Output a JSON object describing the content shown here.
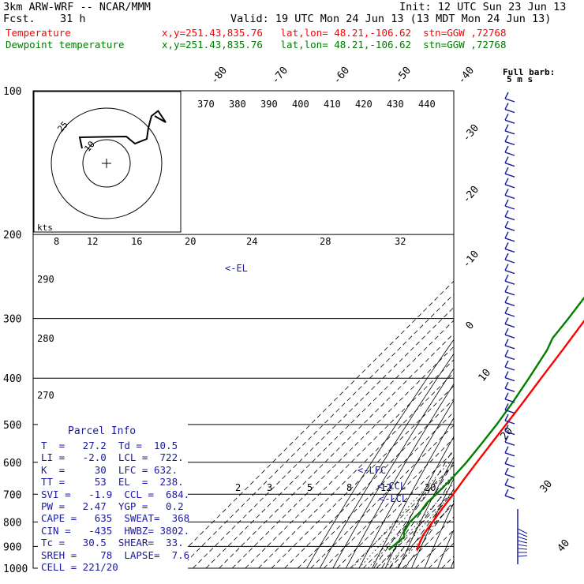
{
  "header": {
    "model": "3km ARW-WRF -- NCAR/MMM",
    "init": "Init: 12 UTC Sun 23 Jun 13",
    "fcst_label": "Fcst.",
    "fcst_value": "31 h",
    "valid": "Valid: 19 UTC Mon 24 Jun 13 (13 MDT Mon 24 Jun 13)",
    "temp_label": "Temperature",
    "dew_label": "Dewpoint temperature",
    "temp_loc": "x,y=251.43,835.76   lat,lon= 48.21,-106.62  stn=GGW ,72768",
    "dew_loc": "x,y=251.43,835.76   lat,lon= 48.21,-106.62  stn=GGW ,72768"
  },
  "colors": {
    "temperature": "#ff0000",
    "dewpoint": "#008000",
    "text_blue": "#1a1aa0"
  },
  "chart_data": {
    "type": "line",
    "skewt": true,
    "pressure_labels": [
      "100",
      "200",
      "300",
      "400",
      "500",
      "600",
      "700",
      "800",
      "900",
      "1000"
    ],
    "pressure_levels": [
      100,
      200,
      300,
      400,
      500,
      600,
      700,
      800,
      900,
      1000
    ],
    "top_temp_labels": [
      "-80",
      "-70",
      "-60",
      "-50",
      "-40"
    ],
    "right_temp_labels": [
      "-30",
      "-20",
      "-10",
      "0",
      "10",
      "20",
      "30",
      "40"
    ],
    "theta_labels": [
      "370",
      "380",
      "390",
      "400",
      "410",
      "420",
      "430",
      "440"
    ],
    "hodo_speed_labels": [
      "8",
      "12",
      "16",
      "20",
      "24",
      "28",
      "32"
    ],
    "kts_label": "kts",
    "theta_left_labels": [
      "290",
      "280",
      "270"
    ],
    "mixing_ratio_labels": [
      "2",
      "3",
      "5",
      "8",
      "12",
      "20"
    ],
    "barb_label": "Full barb:",
    "barb_unit": "5 m s",
    "hodo_ring_labels": [
      "25",
      "10"
    ],
    "annotations": [
      "<-EL",
      "<-LFC",
      "<-CCL",
      "<-LCL"
    ],
    "series": [
      {
        "name": "Temperature",
        "points": [
          [
            915,
            26.7
          ],
          [
            850,
            20.3
          ],
          [
            800,
            17.7
          ],
          [
            750,
            14.8
          ],
          [
            700,
            12.2
          ],
          [
            650,
            9.0
          ],
          [
            600,
            5.9
          ],
          [
            550,
            2.8
          ],
          [
            500,
            -0.7
          ],
          [
            450,
            -4.5
          ],
          [
            400,
            -9.2
          ],
          [
            350,
            -14.3
          ],
          [
            300,
            -20.5
          ],
          [
            275,
            -24.5
          ],
          [
            250,
            -28.8
          ],
          [
            240,
            -31.2
          ],
          [
            225,
            -34.8
          ],
          [
            200,
            -39.2
          ],
          [
            175,
            -42.8
          ],
          [
            160,
            -46.0
          ],
          [
            150,
            -48.0
          ],
          [
            125,
            -52.0
          ],
          [
            110,
            -54.0
          ],
          [
            100,
            -54.5
          ]
        ]
      },
      {
        "name": "Dewpoint temperature",
        "points": [
          [
            915,
            5.5
          ],
          [
            880,
            6.6
          ],
          [
            860,
            7.4
          ],
          [
            840,
            3.4
          ],
          [
            800,
            0.4
          ],
          [
            760,
            0.6
          ],
          [
            730,
            -1.2
          ],
          [
            700,
            -0.8
          ],
          [
            650,
            -0.8
          ],
          [
            600,
            -2.0
          ],
          [
            550,
            -4.6
          ],
          [
            500,
            -7.8
          ],
          [
            450,
            -12.4
          ],
          [
            400,
            -18.5
          ],
          [
            350,
            -26.0
          ],
          [
            330,
            -31.0
          ],
          [
            300,
            -34.0
          ],
          [
            250,
            -40.8
          ],
          [
            200,
            -48.0
          ],
          [
            175,
            -52.0
          ],
          [
            150,
            -57.0
          ],
          [
            120,
            -64.0
          ],
          [
            100,
            -69.5
          ]
        ]
      }
    ]
  },
  "parcel": {
    "title": "Parcel Info",
    "rows": [
      "T  =   27.2  Td =  10.5",
      "LI =   -2.0  LCL =  722.",
      "K  =     30  LFC = 632.",
      "TT =     53  EL  =  238.",
      "SVI =   -1.9  CCL =  684.",
      "PW =   2.47  YGP =   0.2",
      "CAPE =   635  SWEAT=  368",
      "CIN =   -435  HWBZ= 3802.",
      "Tc =   30.5  SHEAR=  33.",
      "SREH =    78  LAPSE=  7.6",
      "CELL = 221/20"
    ]
  }
}
